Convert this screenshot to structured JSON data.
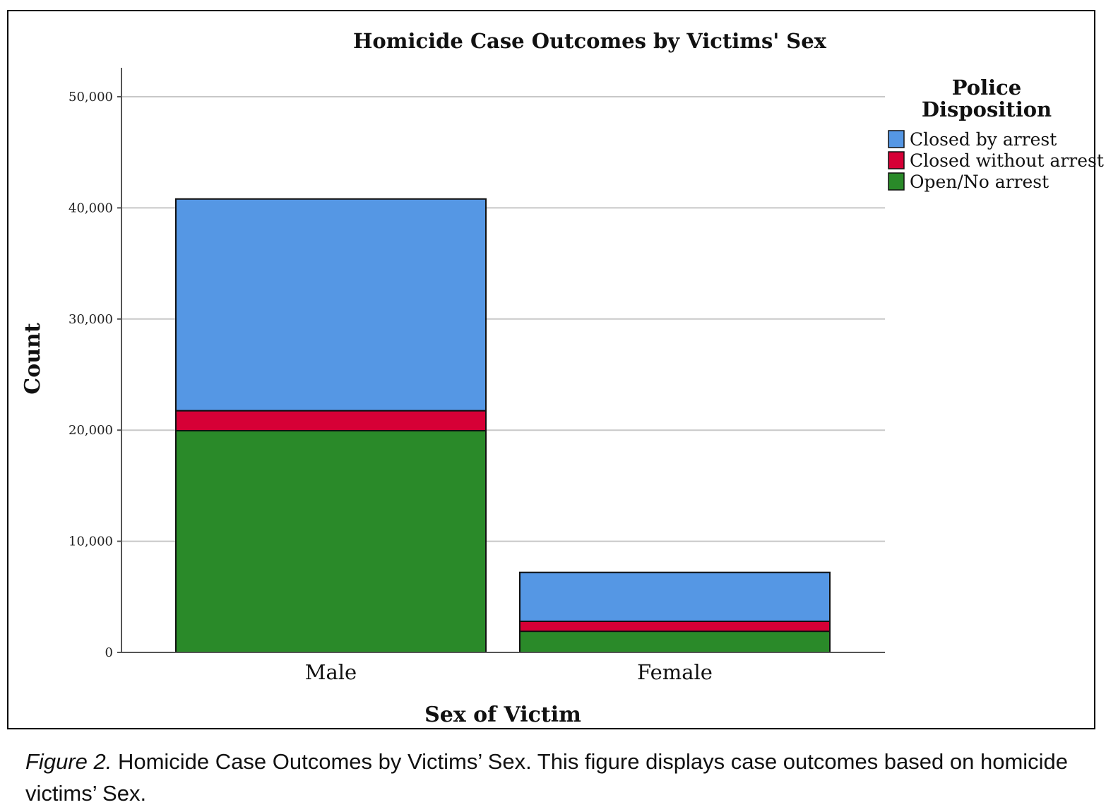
{
  "chart_data": {
    "type": "bar",
    "stacked": true,
    "title": "Homicide Case Outcomes by Victims' Sex",
    "xlabel": "Sex of Victim",
    "ylabel": "Count",
    "ylim": [
      0,
      52500
    ],
    "yticks": [
      0,
      10000,
      20000,
      30000,
      40000,
      50000
    ],
    "ytick_labels": [
      "0",
      "10,000",
      "20,000",
      "30,000",
      "40,000",
      "50,000"
    ],
    "grid": true,
    "categories": [
      "Male",
      "Female"
    ],
    "series": [
      {
        "name": "Open/No arrest",
        "color": "#2a8a29",
        "values": [
          19950,
          1900
        ]
      },
      {
        "name": "Closed without arrest",
        "color": "#d60036",
        "values": [
          1800,
          900
        ]
      },
      {
        "name": "Closed by arrest",
        "color": "#5597e4",
        "values": [
          19050,
          4400
        ]
      }
    ],
    "legend": {
      "title_line1": "Police",
      "title_line2": "Disposition",
      "placement": "right",
      "entries": [
        {
          "label": "Closed by arrest",
          "color": "#5597e4"
        },
        {
          "label": "Closed without arrest",
          "color": "#d60036"
        },
        {
          "label": "Open/No arrest",
          "color": "#2a8a29"
        }
      ]
    }
  },
  "caption": {
    "figure_label": "Figure 2.",
    "text": " Homicide Case Outcomes by Victims’ Sex. This figure displays case outcomes based on homicide victims’ Sex."
  }
}
